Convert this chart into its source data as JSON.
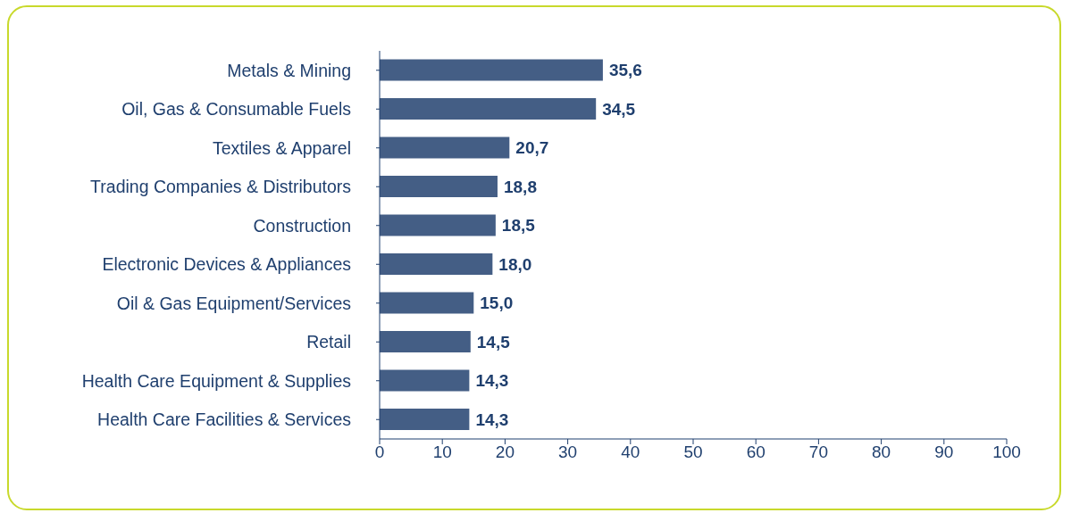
{
  "chart_data": {
    "type": "bar",
    "orientation": "horizontal",
    "categories": [
      "Metals & Mining",
      "Oil, Gas & Consumable Fuels",
      "Textiles & Apparel",
      "Trading Companies & Distributors",
      "Construction",
      "Electronic Devices & Appliances",
      "Oil & Gas Equipment/Services",
      "Retail",
      "Health Care Equipment & Supplies",
      "Health Care Facilities & Services"
    ],
    "values": [
      35.6,
      34.5,
      20.7,
      18.8,
      18.5,
      18.0,
      15.0,
      14.5,
      14.3,
      14.3
    ],
    "value_labels": [
      "35,6",
      "34,5",
      "20,7",
      "18,8",
      "18,5",
      "18,0",
      "15,0",
      "14,5",
      "14,3",
      "14,3"
    ],
    "color": "#445e85",
    "xlim": [
      0,
      100
    ],
    "xticks": [
      0,
      10,
      20,
      30,
      40,
      50,
      60,
      70,
      80,
      90,
      100
    ]
  }
}
